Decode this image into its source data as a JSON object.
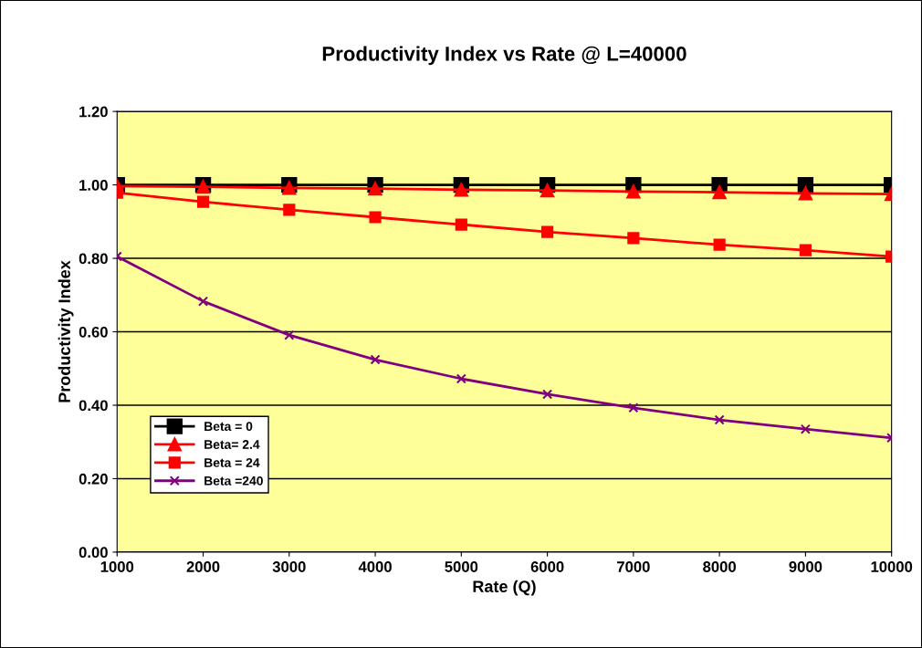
{
  "chart_data": {
    "type": "line",
    "title": "Productivity Index vs Rate @ L=40000",
    "xlabel": "Rate (Q)",
    "ylabel": "Productivity Index",
    "x": [
      1000,
      2000,
      3000,
      4000,
      5000,
      6000,
      7000,
      8000,
      9000,
      10000
    ],
    "series": [
      {
        "name": "Beta = 0",
        "color": "#000000",
        "marker": "square",
        "values": [
          1.0,
          1.0,
          1.0,
          1.0,
          1.0,
          1.0,
          1.0,
          1.0,
          1.0,
          1.0
        ]
      },
      {
        "name": "Beta= 2.4",
        "color": "#ff0000",
        "marker": "triangle",
        "values": [
          0.997,
          0.995,
          0.992,
          0.99,
          0.987,
          0.985,
          0.982,
          0.98,
          0.977,
          0.975
        ]
      },
      {
        "name": "Beta = 24",
        "color": "#ff0000",
        "marker": "square",
        "values": [
          0.979,
          0.954,
          0.932,
          0.912,
          0.892,
          0.872,
          0.855,
          0.837,
          0.822,
          0.805
        ]
      },
      {
        "name": "Beta =240",
        "color": "#800080",
        "marker": "cross",
        "values": [
          0.805,
          0.683,
          0.591,
          0.524,
          0.472,
          0.43,
          0.393,
          0.36,
          0.335,
          0.311
        ]
      }
    ],
    "xlim": [
      1000,
      10000
    ],
    "xticks": [
      1000,
      2000,
      3000,
      4000,
      5000,
      6000,
      7000,
      8000,
      9000,
      10000
    ],
    "ylim": [
      0,
      1.2
    ],
    "yticks": [
      {
        "value": 0,
        "label": "0.00"
      },
      {
        "value": 0.2,
        "label": "0.20"
      },
      {
        "value": 0.4,
        "label": "0.40"
      },
      {
        "value": 0.6,
        "label": "0.60"
      },
      {
        "value": 0.8,
        "label": "0.80"
      },
      {
        "value": 1.0,
        "label": "1.00"
      },
      {
        "value": 1.2,
        "label": "1.20"
      }
    ],
    "grid": "y",
    "legend": "bottom left",
    "line_style": "solid"
  }
}
